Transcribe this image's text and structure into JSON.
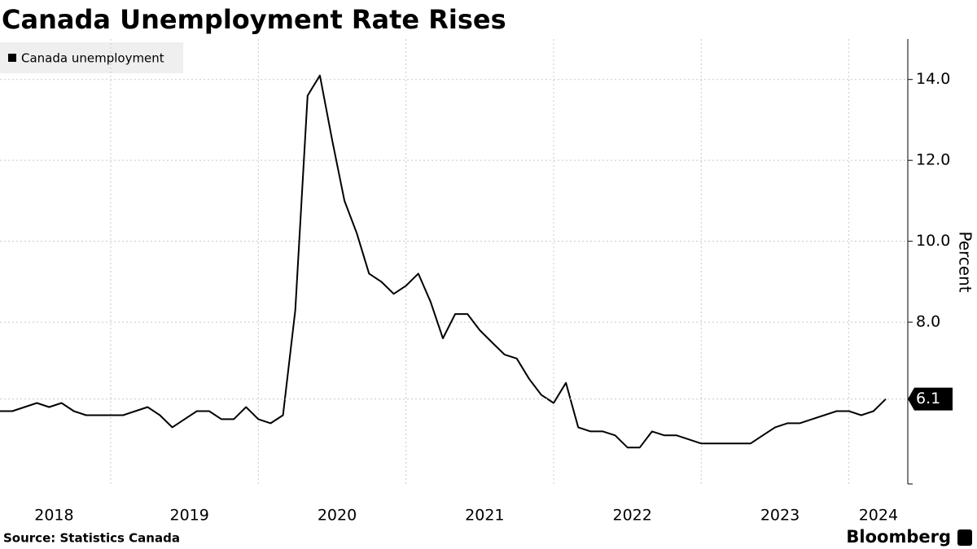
{
  "chart_data": {
    "type": "line",
    "title": "Canada Unemployment Rate Rises",
    "source": "Source: Statistics Canada",
    "brand": "Bloomberg",
    "y_label": "Percent",
    "categories": [
      null,
      null,
      null,
      null,
      "2018",
      null,
      null,
      null,
      null,
      null,
      null,
      null,
      null,
      null,
      null,
      "2019",
      null,
      null,
      null,
      null,
      null,
      null,
      null,
      null,
      null,
      null,
      null,
      "2020",
      null,
      null,
      null,
      null,
      null,
      null,
      null,
      null,
      null,
      null,
      null,
      "2021",
      null,
      null,
      null,
      null,
      null,
      null,
      null,
      null,
      null,
      null,
      null,
      "2022",
      null,
      null,
      null,
      null,
      null,
      null,
      null,
      null,
      null,
      null,
      null,
      "2023",
      null,
      null,
      null,
      null,
      null,
      null,
      null,
      "2024",
      null
    ],
    "series": [
      {
        "name": "Canada unemployment",
        "color": "#000000",
        "values": [
          5.8,
          5.8,
          5.9,
          6.0,
          5.9,
          6.0,
          5.8,
          5.7,
          5.7,
          5.7,
          5.7,
          5.8,
          5.9,
          5.7,
          5.4,
          5.6,
          5.8,
          5.8,
          5.6,
          5.6,
          5.9,
          5.6,
          5.5,
          5.7,
          8.3,
          13.6,
          14.1,
          12.5,
          11.0,
          10.2,
          9.2,
          9.0,
          8.7,
          8.9,
          9.2,
          8.5,
          7.6,
          8.2,
          8.2,
          7.8,
          7.5,
          7.2,
          7.1,
          6.6,
          6.2,
          6.0,
          6.5,
          5.4,
          5.3,
          5.3,
          5.2,
          4.9,
          4.9,
          5.3,
          5.2,
          5.2,
          5.1,
          5.0,
          5.0,
          5.0,
          5.0,
          5.0,
          5.2,
          5.4,
          5.5,
          5.5,
          5.6,
          5.7,
          5.8,
          5.8,
          5.7,
          5.8,
          6.1
        ]
      }
    ],
    "ylim": [
      4,
      15
    ],
    "yticks": [
      {
        "value": 8,
        "label": "8.0"
      },
      {
        "value": 10,
        "label": "10.0"
      },
      {
        "value": 12,
        "label": "12.0"
      },
      {
        "value": 14,
        "label": "14.0"
      }
    ],
    "y_axis_side": "right",
    "grid": true,
    "legend": "top-left"
  }
}
